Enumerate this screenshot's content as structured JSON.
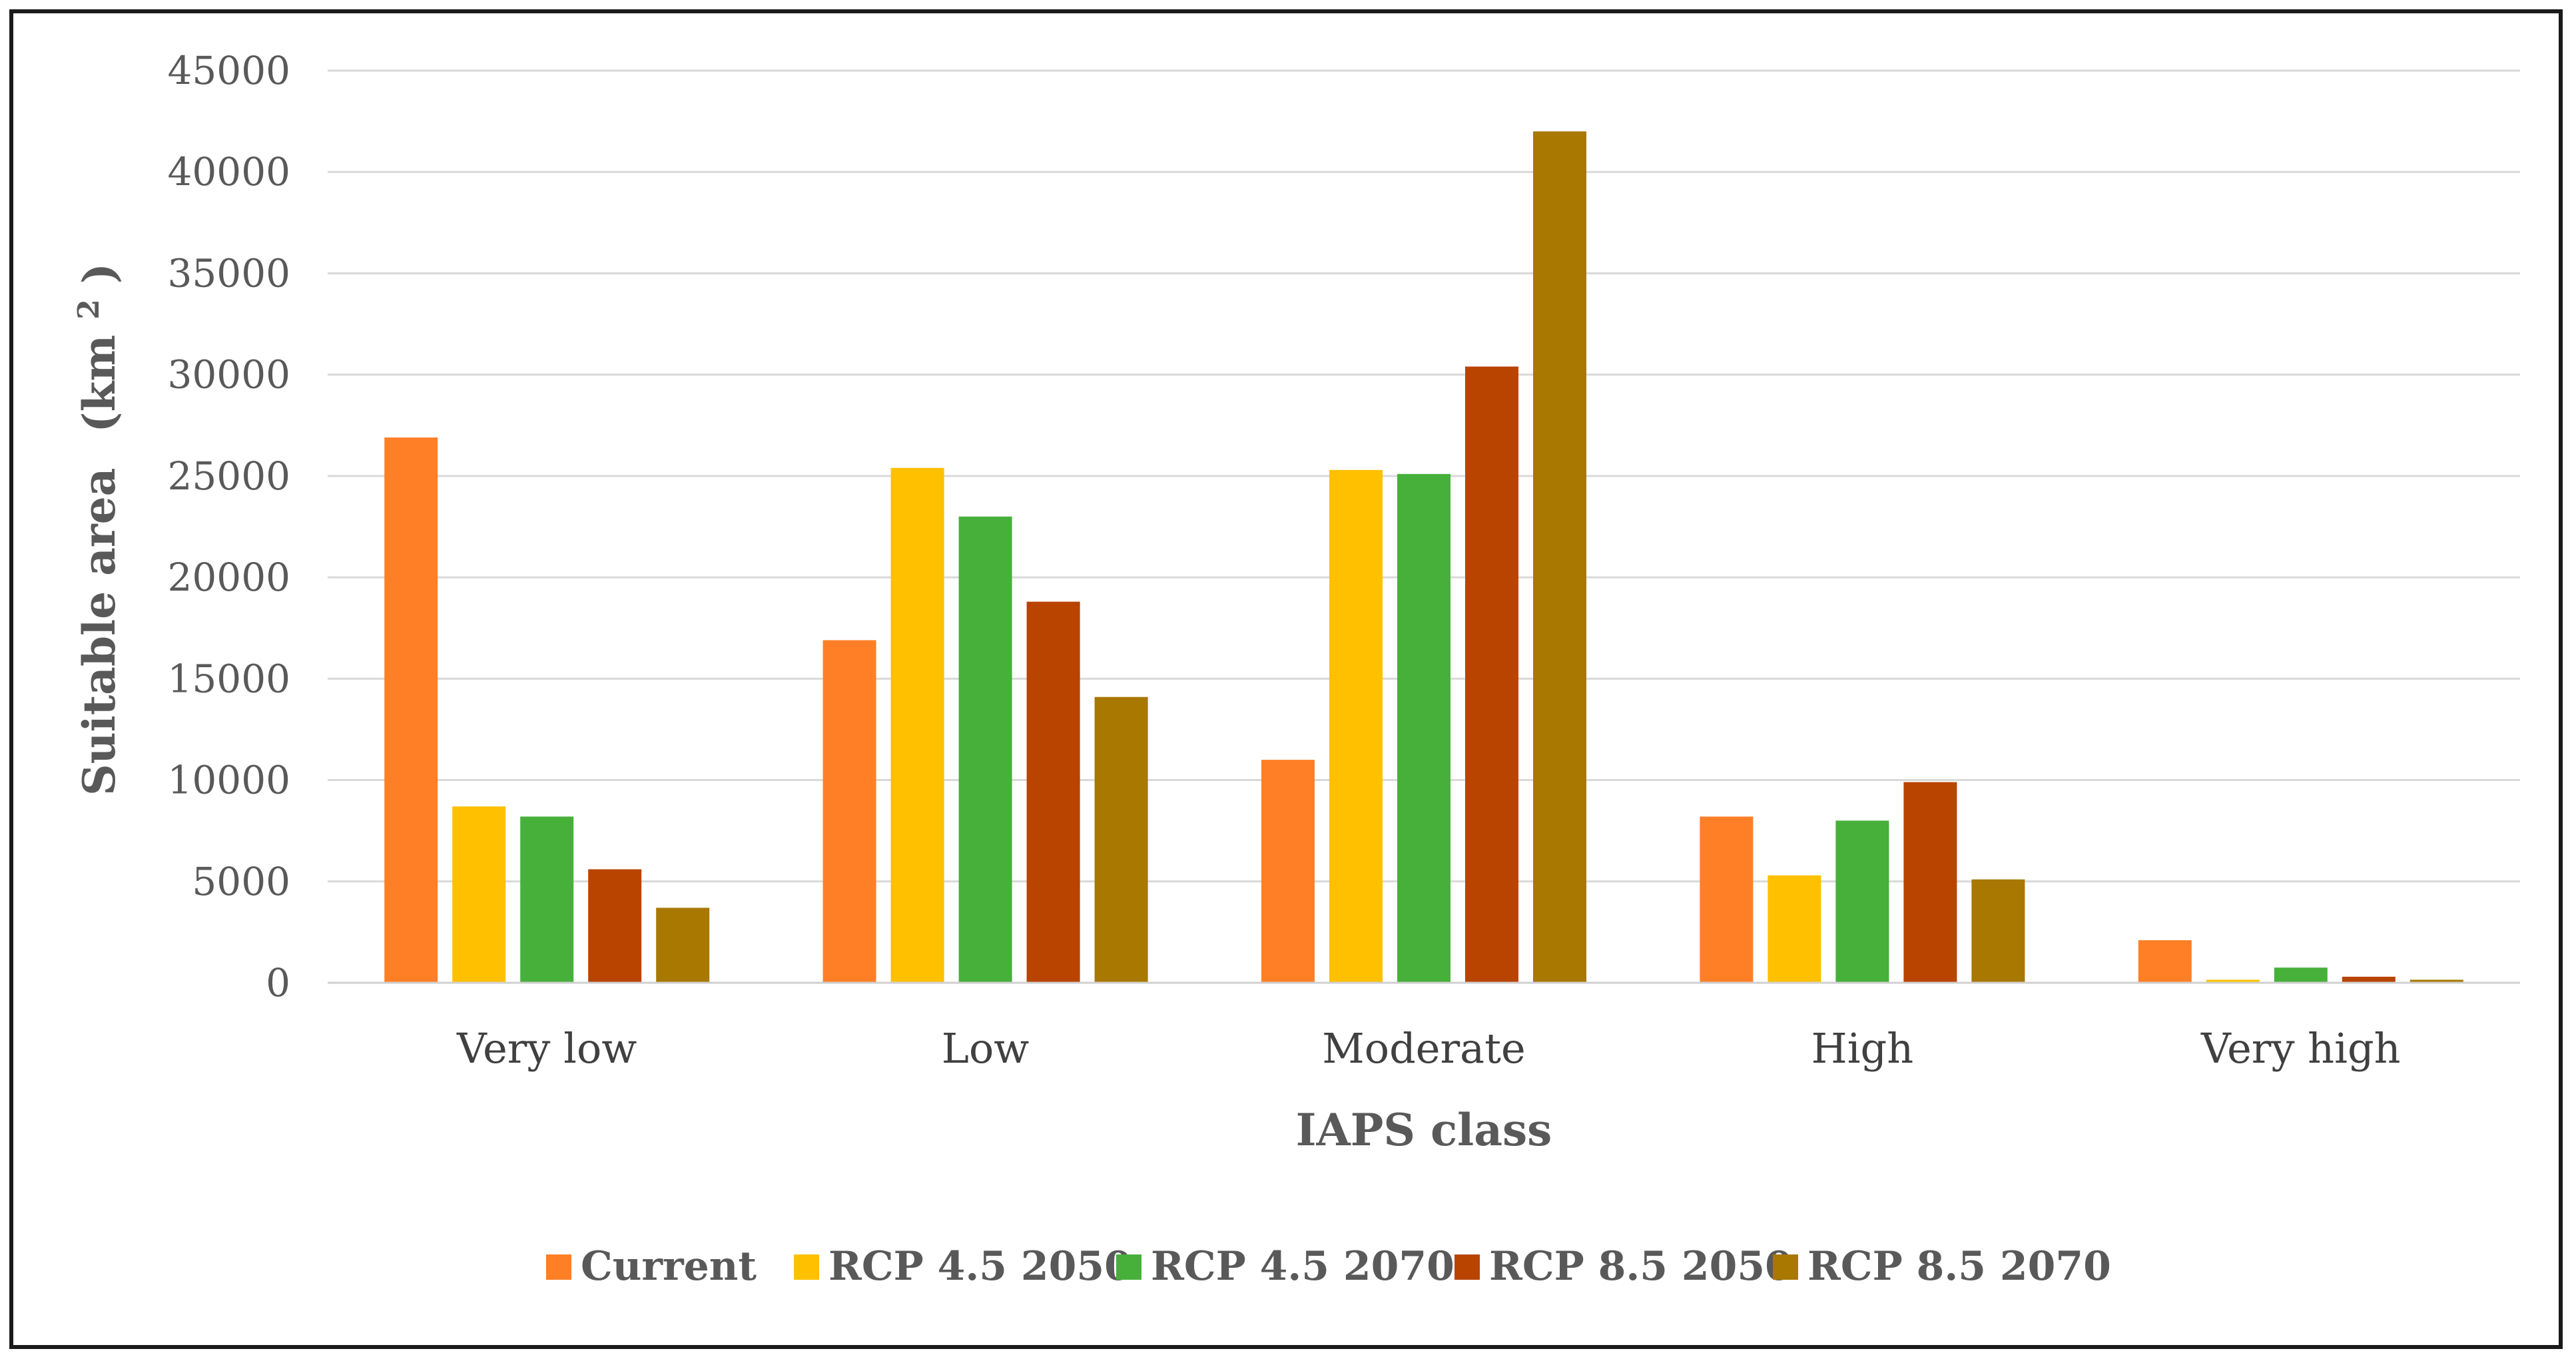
{
  "chart_data": {
    "type": "bar",
    "title": "",
    "xlabel": "IAPS class",
    "ylabel": "Suitable area",
    "ylabel_unit": "(km",
    "ylabel_unit_sup": "2",
    "ylabel_unit_close": ")",
    "ylim": [
      0,
      45000
    ],
    "yticks": [
      0,
      5000,
      10000,
      15000,
      20000,
      25000,
      30000,
      35000,
      40000,
      45000
    ],
    "grid": true,
    "legend_position": "bottom",
    "categories": [
      "Very low",
      "Low",
      "Moderate",
      "High",
      "Very high"
    ],
    "series": [
      {
        "name": "Current",
        "color": "#FF7F27",
        "values": [
          26900,
          16900,
          11000,
          8200,
          2100
        ]
      },
      {
        "name": "RCP 4.5 2050",
        "color": "#FFC000",
        "values": [
          8700,
          25400,
          25300,
          5300,
          150
        ]
      },
      {
        "name": "RCP 4.5 2070",
        "color": "#47B03B",
        "values": [
          8200,
          23000,
          25100,
          8000,
          750
        ]
      },
      {
        "name": "RCP 8.5 2050",
        "color": "#B84400",
        "values": [
          5600,
          18800,
          30400,
          9900,
          300
        ]
      },
      {
        "name": "RCP 8.5 2070",
        "color": "#A87800",
        "values": [
          3700,
          14100,
          42000,
          5100,
          150
        ]
      }
    ]
  }
}
